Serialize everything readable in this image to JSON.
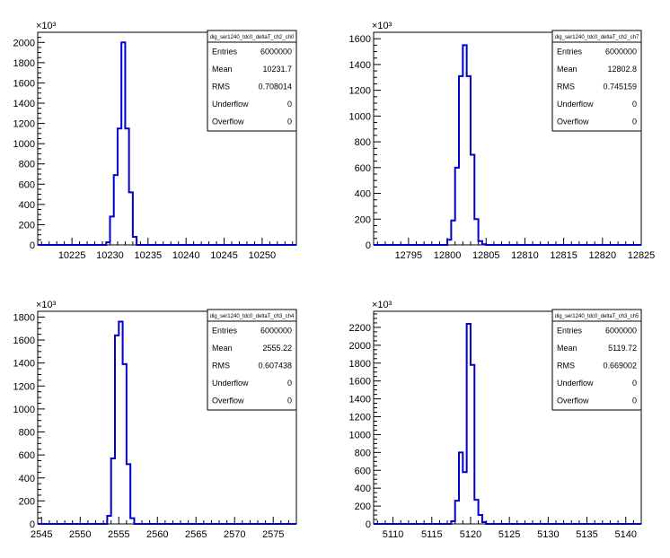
{
  "chart_data": [
    {
      "type": "histogram",
      "stats": {
        "title": "dig_ser1240_tdc0_deltaT_ch2_ch0",
        "rows": [
          {
            "label": "Entries",
            "value": "6000000"
          },
          {
            "label": "Mean",
            "value": "10231.7"
          },
          {
            "label": "RMS",
            "value": "0.708014"
          },
          {
            "label": "Underflow",
            "value": "0"
          },
          {
            "label": "Overflow",
            "value": "0"
          }
        ]
      },
      "multiplier": "×10³",
      "xlim": [
        10220.5,
        10254.5
      ],
      "ylim": [
        0,
        2100
      ],
      "xticks": [
        10225,
        10230,
        10235,
        10240,
        10245,
        10250
      ],
      "yticks": [
        0,
        200,
        400,
        600,
        800,
        1000,
        1200,
        1400,
        1600,
        1800,
        2000
      ],
      "bin_edges": [
        10229.5,
        10230.0,
        10230.5,
        10231.0,
        10231.5,
        10232.0,
        10232.5,
        10233.0,
        10233.5
      ],
      "counts": [
        25,
        280,
        690,
        1150,
        2000,
        1150,
        520,
        80
      ]
    },
    {
      "type": "histogram",
      "stats": {
        "title": "dig_ser1240_tdc0_deltaT_ch2_ch7",
        "rows": [
          {
            "label": "Entries",
            "value": "6000000"
          },
          {
            "label": "Mean",
            "value": "12802.8"
          },
          {
            "label": "RMS",
            "value": "0.745159"
          },
          {
            "label": "Underflow",
            "value": "0"
          },
          {
            "label": "Overflow",
            "value": "0"
          }
        ]
      },
      "multiplier": "×10³",
      "xlim": [
        12790.5,
        12825
      ],
      "ylim": [
        0,
        1650
      ],
      "xticks": [
        12795,
        12800,
        12805,
        12810,
        12815,
        12820,
        12825
      ],
      "yticks": [
        0,
        200,
        400,
        600,
        800,
        1000,
        1200,
        1400,
        1600
      ],
      "bin_edges": [
        12800.0,
        12800.5,
        12801.0,
        12801.5,
        12802.0,
        12802.5,
        12803.0,
        12803.5,
        12804.0,
        12804.5,
        12805.0
      ],
      "counts": [
        40,
        190,
        600,
        1310,
        1550,
        1310,
        700,
        200,
        30,
        5
      ]
    },
    {
      "type": "histogram",
      "stats": {
        "title": "dig_ser1240_tdc0_deltaT_ch3_ch4",
        "rows": [
          {
            "label": "Entries",
            "value": "6000000"
          },
          {
            "label": "Mean",
            "value": "2555.22"
          },
          {
            "label": "RMS",
            "value": "0.607438"
          },
          {
            "label": "Underflow",
            "value": "0"
          },
          {
            "label": "Overflow",
            "value": "0"
          }
        ]
      },
      "multiplier": "×10³",
      "xlim": [
        2544.5,
        2578
      ],
      "ylim": [
        0,
        1850
      ],
      "xticks": [
        2545,
        2550,
        2555,
        2560,
        2565,
        2570,
        2575
      ],
      "yticks": [
        0,
        200,
        400,
        600,
        800,
        1000,
        1200,
        1400,
        1600,
        1800
      ],
      "bin_edges": [
        2553.5,
        2554.0,
        2554.5,
        2555.0,
        2555.5,
        2556.0,
        2556.5,
        2557.0
      ],
      "counts": [
        70,
        570,
        1640,
        1760,
        1390,
        520,
        50
      ]
    },
    {
      "type": "histogram",
      "stats": {
        "title": "dig_ser1240_tdc0_deltaT_ch3_ch5",
        "rows": [
          {
            "label": "Entries",
            "value": "6000000"
          },
          {
            "label": "Mean",
            "value": "5119.72"
          },
          {
            "label": "RMS",
            "value": "0.669002"
          },
          {
            "label": "Underflow",
            "value": "0"
          },
          {
            "label": "Overflow",
            "value": "0"
          }
        ]
      },
      "multiplier": "×10³",
      "xlim": [
        5107.5,
        5142
      ],
      "ylim": [
        0,
        2380
      ],
      "xticks": [
        5110,
        5115,
        5120,
        5125,
        5130,
        5135,
        5140
      ],
      "yticks": [
        0,
        200,
        400,
        600,
        800,
        1000,
        1200,
        1400,
        1600,
        1800,
        2000,
        2200
      ],
      "bin_edges": [
        5117.5,
        5118.0,
        5118.5,
        5119.0,
        5119.5,
        5120.0,
        5120.5,
        5121.0,
        5121.5,
        5122.0
      ],
      "counts": [
        30,
        260,
        800,
        580,
        2240,
        1780,
        270,
        100,
        20
      ]
    }
  ]
}
